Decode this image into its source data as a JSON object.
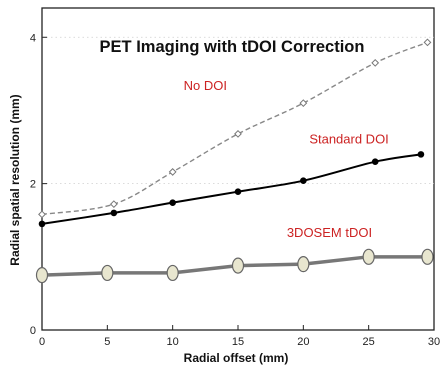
{
  "chart_data": {
    "type": "line",
    "title": "PET Imaging with tDOI Correction",
    "xlabel": "Radial offset (mm)",
    "ylabel": "Radial spatial resolution (mm)",
    "xlim": [
      0,
      30
    ],
    "ylim": [
      0,
      4.4
    ],
    "xticks": [
      0,
      5,
      10,
      15,
      20,
      25,
      30
    ],
    "yticks": [
      0,
      2,
      4
    ],
    "grid": "horizontal dotted",
    "colors": {
      "no_doi_line": "#888888",
      "standard_line": "#000000",
      "tdoi_line": "#777777",
      "tdoi_marker_fill": "#e8e6cf",
      "label_text": "#cc2222"
    },
    "series": [
      {
        "name": "No DOI",
        "x": [
          0,
          5.5,
          10,
          15,
          20,
          25.5,
          29.5
        ],
        "y": [
          1.58,
          1.72,
          2.16,
          2.68,
          3.1,
          3.65,
          3.93
        ]
      },
      {
        "name": "Standard DOI",
        "x": [
          0,
          5.5,
          10,
          15,
          20,
          25.5,
          29
        ],
        "y": [
          1.45,
          1.6,
          1.74,
          1.89,
          2.04,
          2.3,
          2.4
        ]
      },
      {
        "name": "3DOSEM tDOI",
        "x": [
          0,
          5,
          10,
          15,
          20,
          25,
          29.5
        ],
        "y": [
          0.75,
          0.78,
          0.78,
          0.88,
          0.9,
          1.0,
          1.0
        ]
      }
    ]
  }
}
